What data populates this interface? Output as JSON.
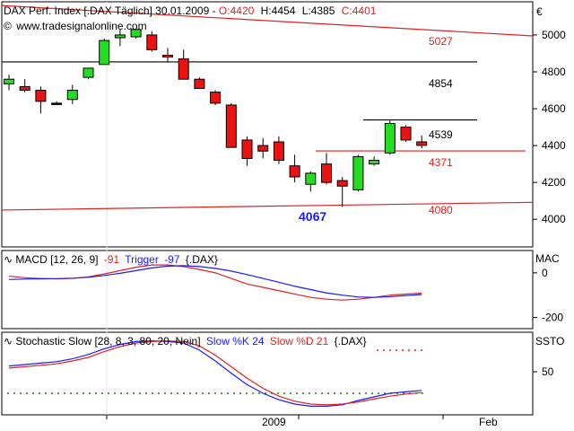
{
  "header": {
    "title_prefix": "DAX Perf. Index [.DAX  Täglich] 30.01.2009 -",
    "open": "O:4420",
    "high": "H:4454",
    "low": "L:4385",
    "close": "C:4401",
    "website": "www.tradesignalonline.com",
    "currency": "€"
  },
  "colors": {
    "up_candle": "#22dd22",
    "down_candle": "#ee1111",
    "resistance": "#dd2222",
    "blue": "#1a1aff",
    "grid": "#e4e4e4"
  },
  "chart_data": [
    {
      "type": "candlestick",
      "name": "price",
      "ylim": [
        3850,
        5180
      ],
      "y_ticks": [
        4000,
        4200,
        4400,
        4600,
        4800,
        5000
      ],
      "x_labels": [
        "2009",
        "Feb"
      ],
      "candles": [
        {
          "o": 4735,
          "h": 4785,
          "l": 4700,
          "c": 4760
        },
        {
          "o": 4720,
          "h": 4760,
          "l": 4690,
          "c": 4700
        },
        {
          "o": 4700,
          "h": 4720,
          "l": 4575,
          "c": 4640
        },
        {
          "o": 4630,
          "h": 4640,
          "l": 4620,
          "c": 4630
        },
        {
          "o": 4650,
          "h": 4730,
          "l": 4625,
          "c": 4700
        },
        {
          "o": 4770,
          "h": 4820,
          "l": 4760,
          "c": 4820
        },
        {
          "o": 4840,
          "h": 4980,
          "l": 4840,
          "c": 4970
        },
        {
          "o": 4985,
          "h": 5030,
          "l": 4940,
          "c": 5000
        },
        {
          "o": 4990,
          "h": 5020,
          "l": 4980,
          "c": 5030
        },
        {
          "o": 5000,
          "h": 5020,
          "l": 4910,
          "c": 4920
        },
        {
          "o": 4890,
          "h": 4930,
          "l": 4850,
          "c": 4880
        },
        {
          "o": 4870,
          "h": 4920,
          "l": 4760,
          "c": 4760
        },
        {
          "o": 4760,
          "h": 4770,
          "l": 4720,
          "c": 4710
        },
        {
          "o": 4690,
          "h": 4700,
          "l": 4620,
          "c": 4630
        },
        {
          "o": 4620,
          "h": 4630,
          "l": 4390,
          "c": 4390
        },
        {
          "o": 4430,
          "h": 4450,
          "l": 4290,
          "c": 4330
        },
        {
          "o": 4400,
          "h": 4440,
          "l": 4330,
          "c": 4370
        },
        {
          "o": 4420,
          "h": 4450,
          "l": 4300,
          "c": 4320
        },
        {
          "o": 4290,
          "h": 4350,
          "l": 4200,
          "c": 4230
        },
        {
          "o": 4190,
          "h": 4260,
          "l": 4150,
          "c": 4250
        },
        {
          "o": 4300,
          "h": 4360,
          "l": 4190,
          "c": 4200
        },
        {
          "o": 4210,
          "h": 4230,
          "l": 4067,
          "c": 4180
        },
        {
          "o": 4160,
          "h": 4350,
          "l": 4150,
          "c": 4340
        },
        {
          "o": 4300,
          "h": 4340,
          "l": 4290,
          "c": 4320
        },
        {
          "o": 4360,
          "h": 4539,
          "l": 4350,
          "c": 4520
        },
        {
          "o": 4500,
          "h": 4510,
          "l": 4420,
          "c": 4430
        },
        {
          "o": 4420,
          "h": 4454,
          "l": 4385,
          "c": 4401
        }
      ],
      "levels": [
        {
          "label": "5027",
          "value": 5027,
          "color": "#dd2222"
        },
        {
          "label": "4854",
          "value": 4854,
          "color": "#000000"
        },
        {
          "label": "4539",
          "value": 4539,
          "color": "#000000"
        },
        {
          "label": "4371",
          "value": 4371,
          "color": "#dd2222"
        },
        {
          "label": "4080",
          "value": 4080,
          "color": "#dd2222"
        }
      ],
      "low_annotation": "4067"
    },
    {
      "type": "line",
      "name": "macd",
      "title_prefix": "MACD [12, 26, 9]",
      "macd_value": "-91",
      "trigger_label": "Trigger",
      "trigger_value": "-97",
      "symbol": "{.DAX}",
      "right_label": "MAC",
      "ylim": [
        -250,
        100
      ],
      "y_ticks": [
        0,
        -200
      ],
      "series": [
        {
          "name": "MACD",
          "color": "#dd2222",
          "values": [
            -15,
            -22,
            -25,
            -27,
            -25,
            -18,
            -5,
            10,
            25,
            35,
            35,
            28,
            15,
            0,
            -25,
            -50,
            -65,
            -80,
            -95,
            -110,
            -118,
            -122,
            -118,
            -110,
            -100,
            -95,
            -91
          ]
        },
        {
          "name": "Trigger",
          "color": "#1a1aff",
          "values": [
            -30,
            -28,
            -27,
            -26,
            -24,
            -20,
            -12,
            -2,
            10,
            22,
            30,
            32,
            28,
            20,
            8,
            -8,
            -25,
            -42,
            -60,
            -75,
            -90,
            -100,
            -108,
            -110,
            -107,
            -102,
            -97
          ]
        }
      ]
    },
    {
      "type": "line",
      "name": "stochastic",
      "title_prefix": "Stochastic Slow [28, 8, 3, 80, 20, Nein]",
      "k_label": "Slow %K 24",
      "d_label": "Slow %D 21",
      "symbol": "{.DAX}",
      "right_label": "SSTO",
      "ylim": [
        -10,
        105
      ],
      "y_ticks": [
        50
      ],
      "upper_band": 80,
      "lower_band": 20,
      "series": [
        {
          "name": "Slow %K",
          "color": "#1a1aff",
          "values": [
            58,
            60,
            62,
            64,
            68,
            74,
            82,
            88,
            92,
            93,
            92,
            90,
            80,
            65,
            48,
            32,
            20,
            11,
            5,
            2,
            2,
            4,
            10,
            15,
            20,
            22,
            24
          ]
        },
        {
          "name": "Slow %D",
          "color": "#dd2222",
          "values": [
            55,
            57,
            59,
            61,
            65,
            70,
            78,
            85,
            90,
            92,
            93,
            92,
            86,
            73,
            57,
            41,
            27,
            16,
            9,
            5,
            4,
            5,
            8,
            12,
            16,
            19,
            21
          ]
        }
      ]
    }
  ]
}
